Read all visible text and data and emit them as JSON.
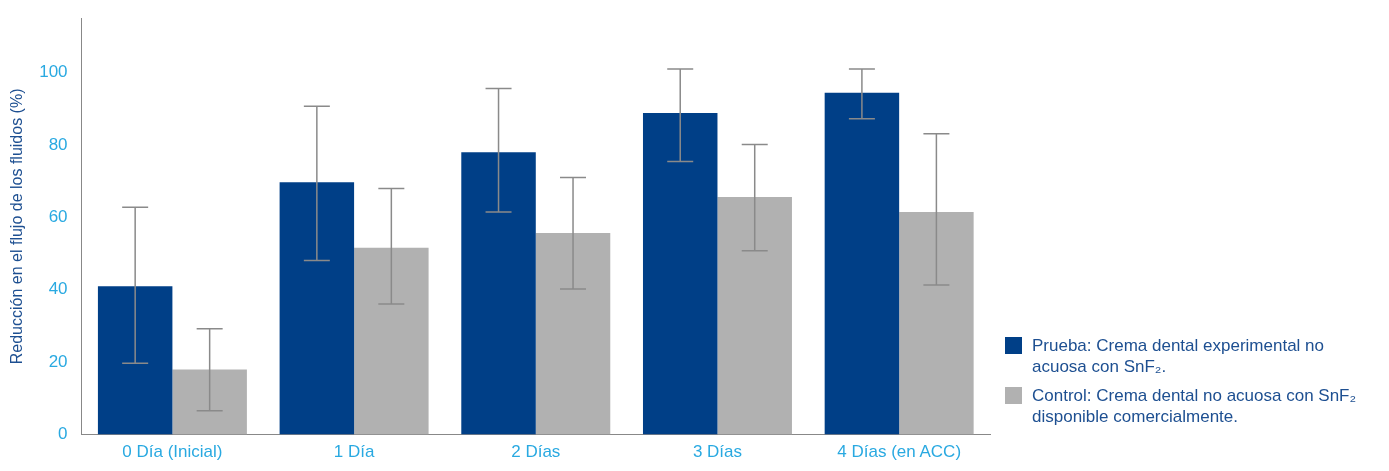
{
  "chart_data": {
    "type": "bar",
    "ylabel": "Reducción en el flujo de los fluidos (%)",
    "categories": [
      "0 Día (Inicial)",
      "1 Día",
      "2 Días",
      "3 Días",
      "4 Días (en ACC)"
    ],
    "series": [
      {
        "name": "Prueba: Crema dental experimental no acuosa con SnF₂.",
        "color": "#003f87",
        "values": [
          41,
          69.7,
          78,
          88.8,
          94.4
        ],
        "errors": [
          [
            19.7,
            62.8
          ],
          [
            48.1,
            90.7
          ],
          [
            61.5,
            95.6
          ],
          [
            75.4,
            101
          ],
          [
            87.2,
            101
          ]
        ]
      },
      {
        "name": "Control: Crema dental no acuosa con SnF₂ disponible comercialmente.",
        "color": "#b1b1b1",
        "values": [
          18,
          51.6,
          55.7,
          65.6,
          61.5
        ],
        "errors": [
          [
            6.6,
            29.2
          ],
          [
            36.1,
            68
          ],
          [
            40.2,
            71
          ],
          [
            50.8,
            80.1
          ],
          [
            41.3,
            83.1
          ]
        ]
      }
    ],
    "ylim": [
      0,
      115
    ],
    "yticks": [
      0,
      20,
      40,
      60,
      80,
      100
    ],
    "grid": false,
    "legend": "bottom right"
  }
}
